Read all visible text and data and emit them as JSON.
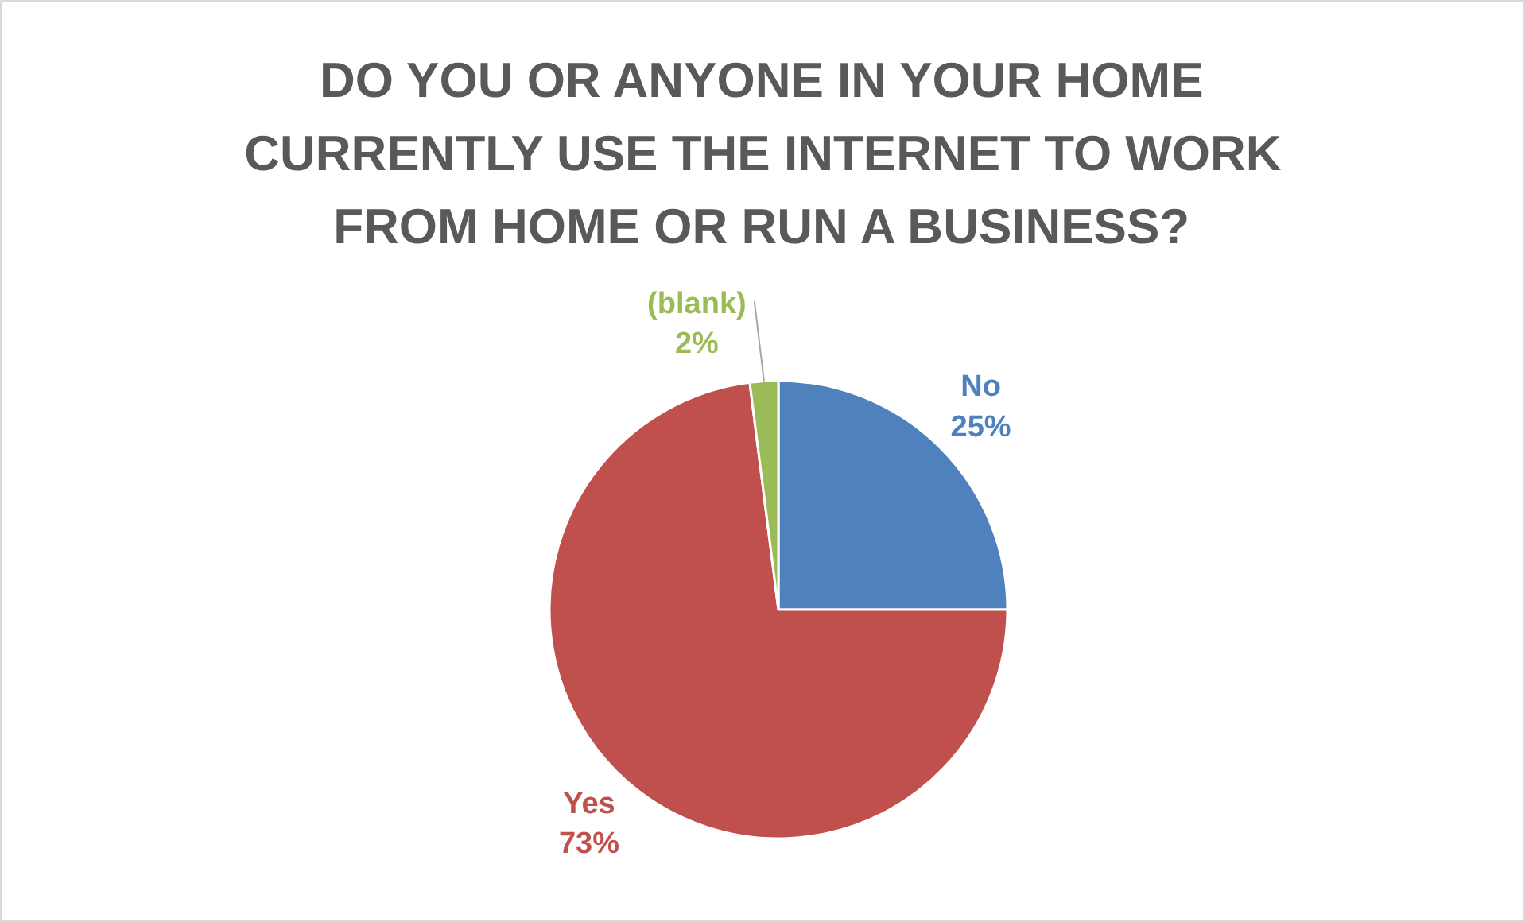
{
  "chart_data": {
    "type": "pie",
    "title": "DO YOU OR ANYONE IN YOUR HOME CURRENTLY USE THE INTERNET TO WORK FROM HOME OR RUN A BUSINESS?",
    "categories": [
      "No",
      "Yes",
      "(blank)"
    ],
    "values": [
      25,
      73,
      2
    ],
    "colors": [
      "#4f81bd",
      "#c0504d",
      "#9bbb59"
    ],
    "value_labels": [
      "25%",
      "73%",
      "2%"
    ]
  }
}
